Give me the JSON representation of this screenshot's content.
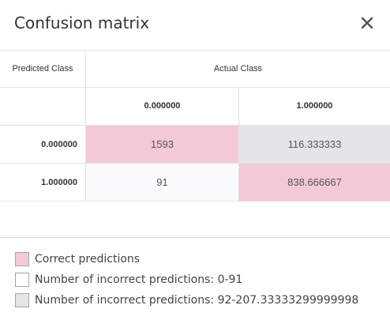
{
  "dialog": {
    "title": "Confusion matrix",
    "close_icon": "close-icon"
  },
  "matrix": {
    "row_header_label": "Predicted Class",
    "column_header_label": "Actual Class",
    "columns": [
      "0.000000",
      "1.000000"
    ],
    "rows": [
      {
        "label": "0.000000",
        "cells": [
          "1593",
          "116.333333"
        ],
        "cell_types": [
          "correct",
          "incorrect-high"
        ]
      },
      {
        "label": "1.000000",
        "cells": [
          "91",
          "838.666667"
        ],
        "cell_types": [
          "incorrect-low",
          "correct"
        ]
      }
    ]
  },
  "legend": {
    "items": [
      {
        "label": "Correct predictions",
        "color": "#f3c9d8"
      },
      {
        "label": "Number of incorrect predictions: 0-91",
        "color": "#ffffff"
      },
      {
        "label": "Number of incorrect predictions: 92-207.33333299999998",
        "color": "#e5e4e9"
      }
    ]
  }
}
